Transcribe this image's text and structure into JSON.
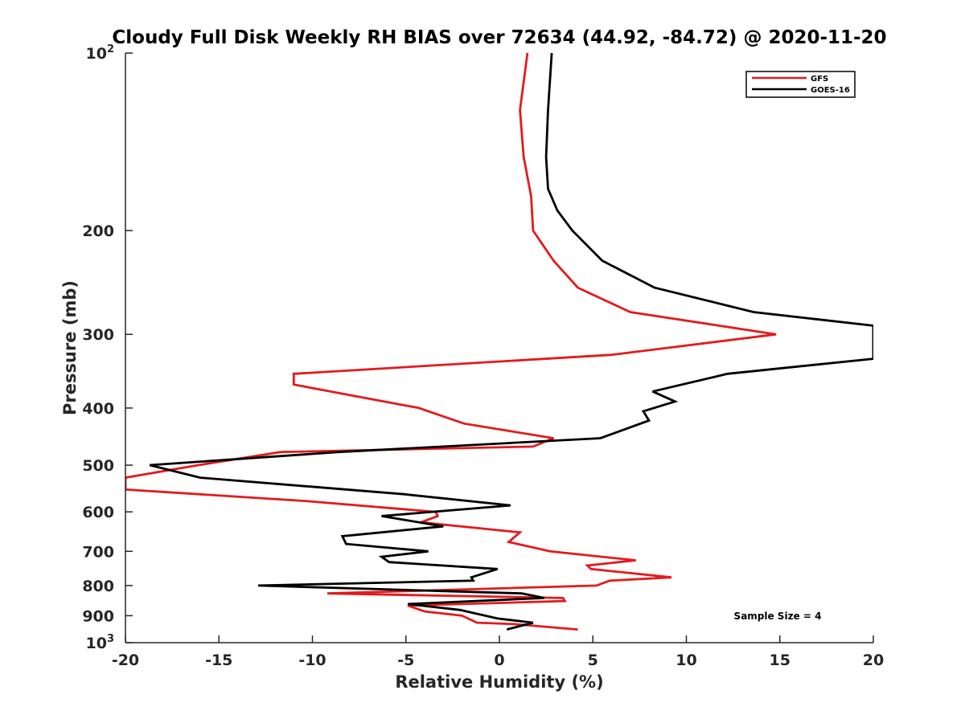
{
  "chart_data": {
    "type": "line",
    "title": "Cloudy Full Disk Weekly RH BIAS over 72634 (44.92, -84.72) @ 2020-11-20",
    "xlabel": "Relative Humidity (%)",
    "ylabel": "Pressure (mb)",
    "xlim": [
      -20,
      20
    ],
    "ylim": [
      100,
      1000
    ],
    "yscale": "log",
    "y_reversed": true,
    "grid": false,
    "legend_position": "top-right",
    "x_ticks": [
      "-20",
      "-15",
      "-10",
      "-5",
      "0",
      "5",
      "10",
      "15",
      "20"
    ],
    "y_ticks": [
      {
        "value": 100,
        "base": "10",
        "exp": "2"
      },
      {
        "value": 200,
        "base": "200",
        "exp": ""
      },
      {
        "value": 300,
        "base": "300",
        "exp": ""
      },
      {
        "value": 400,
        "base": "400",
        "exp": ""
      },
      {
        "value": 500,
        "base": "500",
        "exp": ""
      },
      {
        "value": 600,
        "base": "600",
        "exp": ""
      },
      {
        "value": 700,
        "base": "700",
        "exp": ""
      },
      {
        "value": 800,
        "base": "800",
        "exp": ""
      },
      {
        "value": 900,
        "base": "900",
        "exp": ""
      },
      {
        "value": 1000,
        "base": "10",
        "exp": "3"
      }
    ],
    "series": [
      {
        "name": "GFS",
        "color": "#e41a1c",
        "points": [
          [
            1.5,
            100
          ],
          [
            1.1,
            125
          ],
          [
            1.3,
            150
          ],
          [
            1.7,
            175
          ],
          [
            1.8,
            200
          ],
          [
            2.9,
            225
          ],
          [
            4.2,
            250
          ],
          [
            7.0,
            275
          ],
          [
            14.8,
            300
          ],
          [
            6.0,
            325
          ],
          [
            -11.0,
            350
          ],
          [
            -11.0,
            365
          ],
          [
            -4.3,
            400
          ],
          [
            -1.9,
            425
          ],
          [
            2.9,
            450
          ],
          [
            1.8,
            465
          ],
          [
            -11.7,
            475
          ],
          [
            -16.1,
            500
          ],
          [
            -20.0,
            525
          ],
          [
            -20.0,
            550
          ],
          [
            -10.4,
            575
          ],
          [
            -3.4,
            600
          ],
          [
            -3.3,
            610
          ],
          [
            -4.2,
            625
          ],
          [
            1.1,
            650
          ],
          [
            0.5,
            675
          ],
          [
            2.7,
            700
          ],
          [
            7.3,
            725
          ],
          [
            4.7,
            740
          ],
          [
            4.9,
            750
          ],
          [
            9.2,
            775
          ],
          [
            5.9,
            785
          ],
          [
            5.2,
            800
          ],
          [
            -9.2,
            825
          ],
          [
            3.4,
            840
          ],
          [
            3.5,
            850
          ],
          [
            -4.9,
            865
          ],
          [
            -4.0,
            885
          ],
          [
            -2.0,
            900
          ],
          [
            -1.2,
            925
          ],
          [
            0.8,
            930
          ],
          [
            4.2,
            950
          ]
        ]
      },
      {
        "name": "GOES-16",
        "color": "#000000",
        "points": [
          [
            2.8,
            100
          ],
          [
            2.6,
            125
          ],
          [
            2.5,
            150
          ],
          [
            2.6,
            170
          ],
          [
            3.1,
            185
          ],
          [
            3.9,
            200
          ],
          [
            5.5,
            225
          ],
          [
            8.3,
            250
          ],
          [
            13.6,
            275
          ],
          [
            20.0,
            290
          ],
          [
            20.0,
            330
          ],
          [
            12.2,
            350
          ],
          [
            8.2,
            375
          ],
          [
            9.4,
            390
          ],
          [
            7.7,
            405
          ],
          [
            8.0,
            420
          ],
          [
            5.4,
            450
          ],
          [
            -8.6,
            475
          ],
          [
            -18.7,
            500
          ],
          [
            -16.0,
            525
          ],
          [
            -5.1,
            560
          ],
          [
            0.6,
            585
          ],
          [
            -6.3,
            610
          ],
          [
            -3.0,
            635
          ],
          [
            -8.4,
            660
          ],
          [
            -8.2,
            680
          ],
          [
            -3.8,
            700
          ],
          [
            -6.3,
            715
          ],
          [
            -5.9,
            730
          ],
          [
            -0.1,
            750
          ],
          [
            -1.5,
            775
          ],
          [
            -1.4,
            785
          ],
          [
            -12.9,
            800
          ],
          [
            1.2,
            825
          ],
          [
            2.4,
            840
          ],
          [
            -4.9,
            860
          ],
          [
            -2.1,
            880
          ],
          [
            -0.1,
            910
          ],
          [
            1.8,
            925
          ],
          [
            0.4,
            950
          ]
        ]
      }
    ],
    "annotations": [
      {
        "text": "Sample Size = 4"
      }
    ]
  },
  "colors": {
    "axis": "#262626",
    "gfs": "#e41a1c",
    "goes": "#000000"
  }
}
